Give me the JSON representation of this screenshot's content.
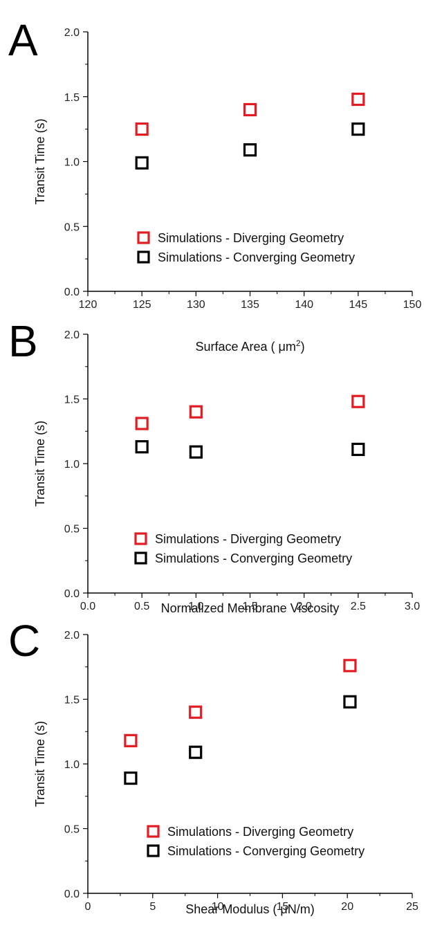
{
  "chart_data": [
    {
      "type": "scatter",
      "panel_letter": "A",
      "xlabel": "Surface Area ( μm",
      "xlabel_sup": "2",
      "xlabel_end": ")",
      "ylabel": "Transit Time (s)",
      "xlim": [
        120,
        150
      ],
      "ylim": [
        0,
        2.0
      ],
      "x_ticks": [
        "120",
        "125",
        "130",
        "135",
        "140",
        "145",
        "150"
      ],
      "y_ticks": [
        "0.0",
        "0.5",
        "1.0",
        "1.5",
        "2.0"
      ],
      "legend_position": "bottom-center",
      "series": [
        {
          "name": "Simulations - Diverging Geometry",
          "color": "#e31b23",
          "marker": "open-square",
          "x": [
            125,
            135,
            145
          ],
          "y": [
            1.25,
            1.4,
            1.48
          ]
        },
        {
          "name": "Simulations - Converging Geometry",
          "color": "#000000",
          "marker": "open-square",
          "x": [
            125,
            135,
            145
          ],
          "y": [
            0.99,
            1.09,
            1.25
          ]
        }
      ]
    },
    {
      "type": "scatter",
      "panel_letter": "B",
      "xlabel": "Normalized Membrane Viscosity",
      "ylabel": "Transit Time (s)",
      "xlim": [
        0,
        3.0
      ],
      "ylim": [
        0,
        2.0
      ],
      "x_ticks": [
        "0.0",
        "0.5",
        "1.0",
        "1.5",
        "2.0",
        "2.5",
        "3.0"
      ],
      "y_ticks": [
        "0.0",
        "0.5",
        "1.0",
        "1.5",
        "2.0"
      ],
      "legend_position": "bottom-center",
      "series": [
        {
          "name": "Simulations - Diverging Geometry",
          "color": "#e31b23",
          "marker": "open-square",
          "x": [
            0.5,
            1.0,
            2.5
          ],
          "y": [
            1.31,
            1.4,
            1.48
          ]
        },
        {
          "name": "Simulations - Converging Geometry",
          "color": "#000000",
          "marker": "open-square",
          "x": [
            0.5,
            1.0,
            2.5
          ],
          "y": [
            1.13,
            1.09,
            1.11
          ]
        }
      ]
    },
    {
      "type": "scatter",
      "panel_letter": "C",
      "xlabel": "Shear Modulus ( μN/m)",
      "ylabel": "Transit Time (s)",
      "xlim": [
        0,
        25
      ],
      "ylim": [
        0,
        2.0
      ],
      "x_ticks": [
        "0",
        "5",
        "10",
        "15",
        "20",
        "25"
      ],
      "y_ticks": [
        "0.0",
        "0.5",
        "1.0",
        "1.5",
        "2.0"
      ],
      "legend_position": "bottom-center",
      "series": [
        {
          "name": "Simulations - Diverging Geometry",
          "color": "#e31b23",
          "marker": "open-square",
          "x": [
            3.3,
            8.3,
            20.2
          ],
          "y": [
            1.18,
            1.4,
            1.76
          ]
        },
        {
          "name": "Simulations - Converging Geometry",
          "color": "#000000",
          "marker": "open-square",
          "x": [
            3.3,
            8.3,
            20.2
          ],
          "y": [
            0.89,
            1.09,
            1.48
          ]
        }
      ]
    }
  ]
}
